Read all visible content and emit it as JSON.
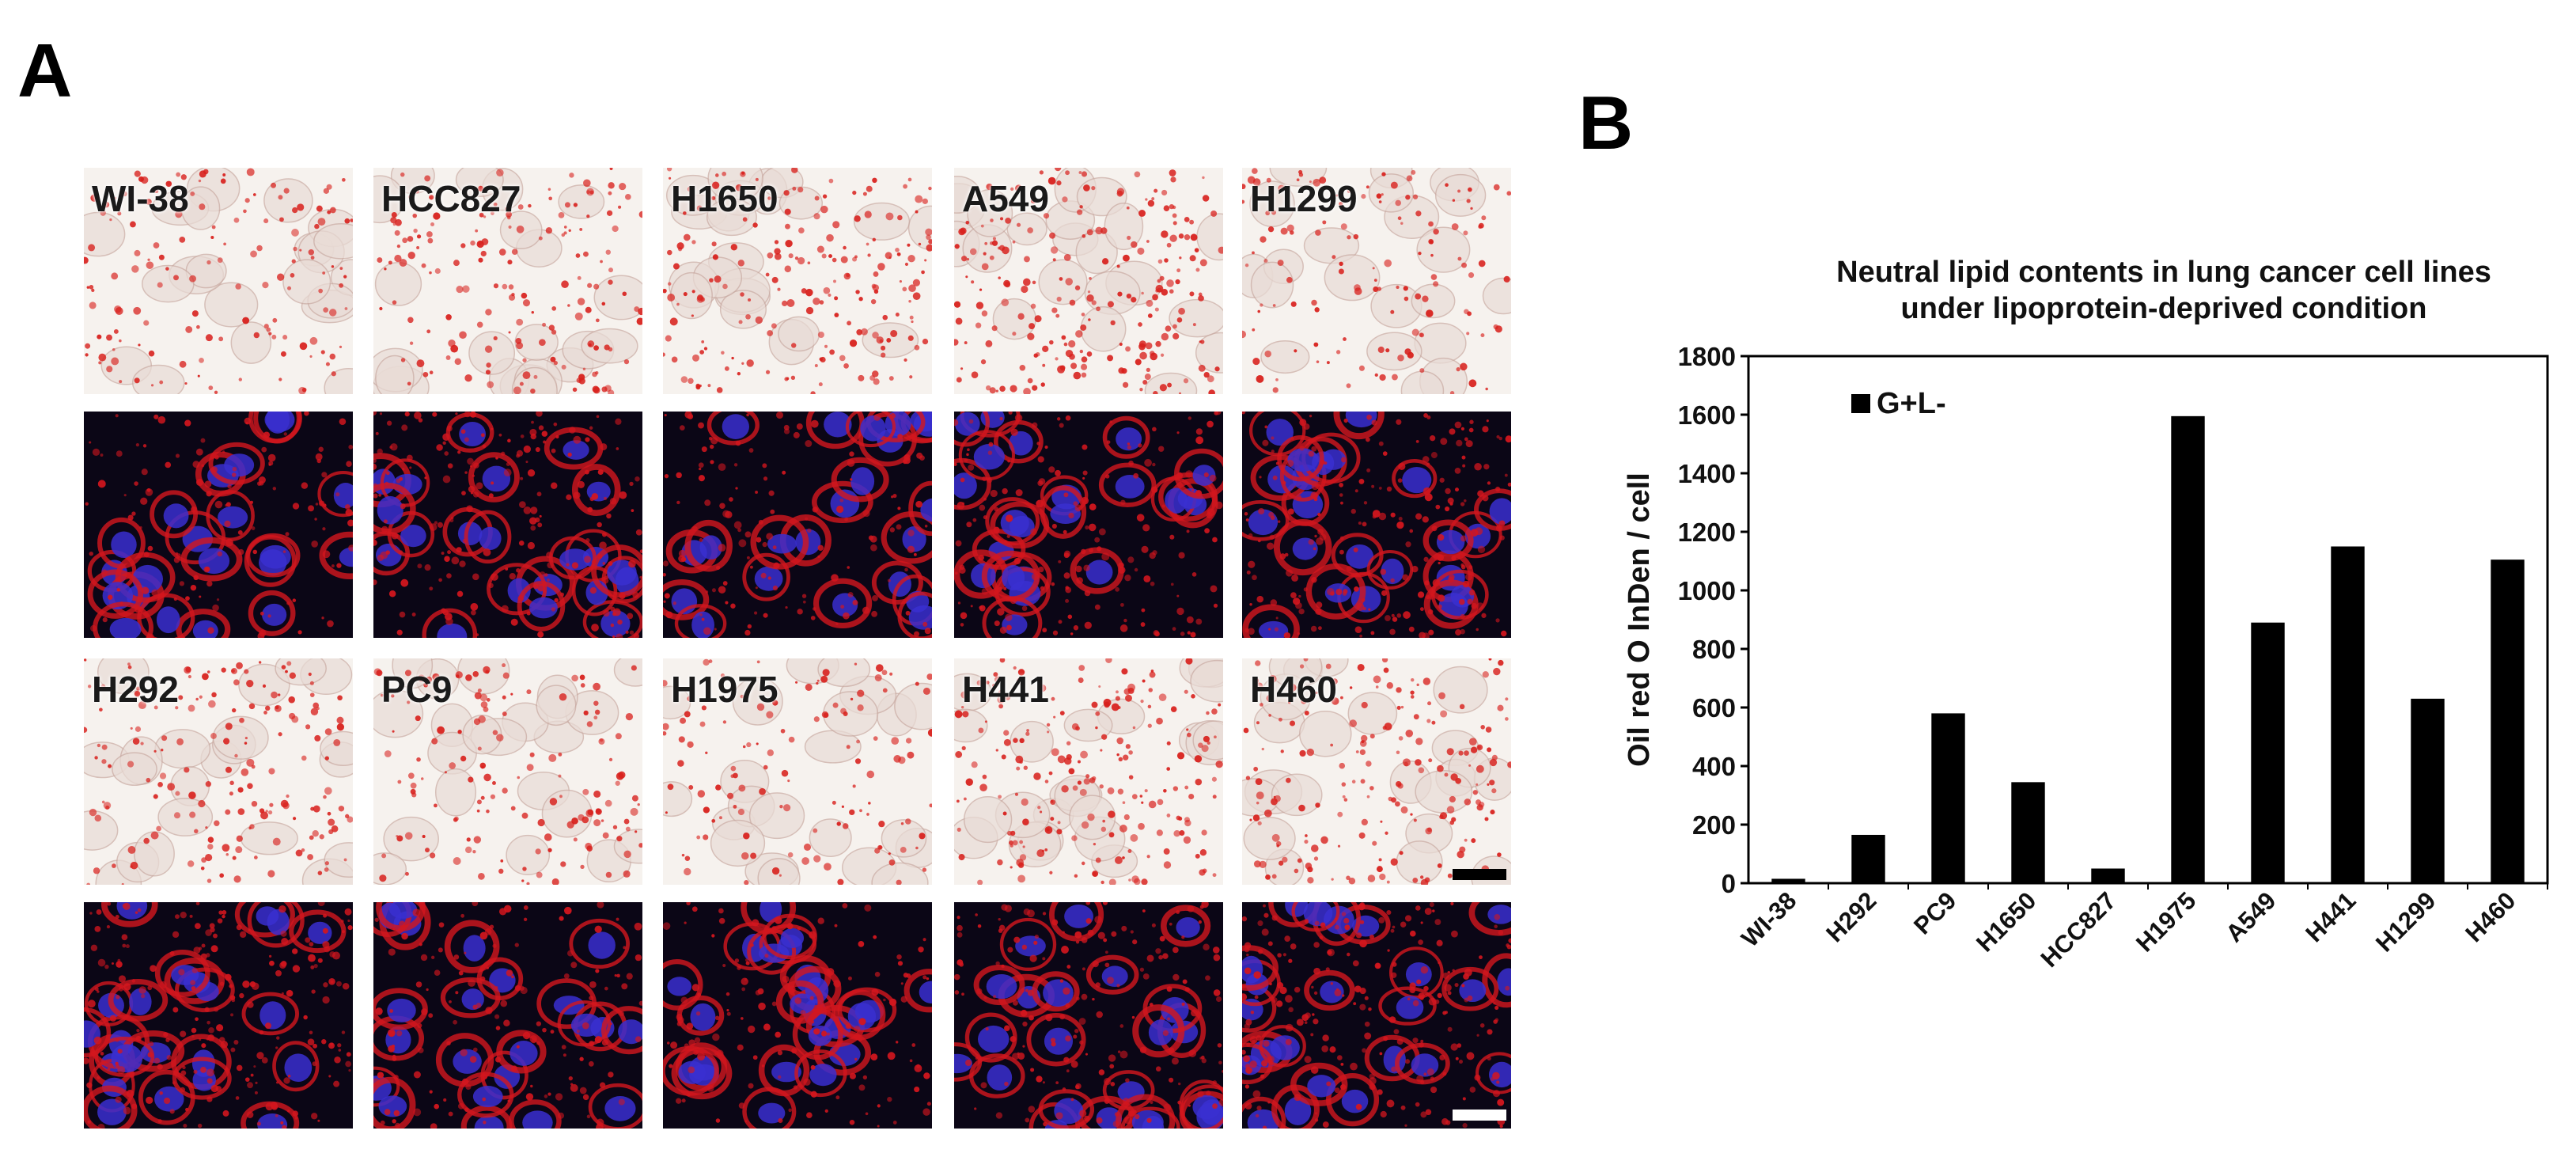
{
  "figure": {
    "panel_a_letter": "A",
    "panel_b_letter": "B"
  },
  "micrographs": {
    "rows": [
      {
        "stain": "oil-red-o-brightfield",
        "cells": [
          "WI-38",
          "HCC827",
          "H1650",
          "A549",
          "H1299"
        ]
      },
      {
        "stain": "fluorescence",
        "cells": [
          "WI-38",
          "HCC827",
          "H1650",
          "A549",
          "H1299"
        ]
      },
      {
        "stain": "oil-red-o-brightfield",
        "cells": [
          "H292",
          "PC9",
          "H1975",
          "H441",
          "H460"
        ]
      },
      {
        "stain": "fluorescence",
        "cells": [
          "H292",
          "PC9",
          "H1975",
          "H441",
          "H460"
        ]
      }
    ],
    "colors": {
      "brightfield_background": "#f6f2ee",
      "lipid_red": "#d8201c",
      "nucleus_blue": "#3a2fd0",
      "fluor_background": "#0b0616",
      "membrane_red": "#d3161e"
    }
  },
  "chart_data": {
    "type": "bar",
    "title": "Neutral lipid contents in lung cancer cell lines under lipoprotein-deprived condition",
    "title_lines": [
      "Neutral lipid contents in lung cancer cell lines",
      "under lipoprotein-deprived condition"
    ],
    "ylabel": "Oil red  O InDen / cell",
    "xlabel": "",
    "ylim": [
      0,
      1800
    ],
    "yticks": [
      0,
      200,
      400,
      600,
      800,
      1000,
      1200,
      1400,
      1600,
      1800
    ],
    "categories": [
      "WI-38",
      "H292",
      "PC9",
      "H1650",
      "HCC827",
      "H1975",
      "A549",
      "H441",
      "H1299",
      "H460"
    ],
    "series": [
      {
        "name": "G+L-",
        "values": [
          15,
          165,
          580,
          345,
          50,
          1595,
          890,
          1150,
          630,
          1105
        ],
        "color": "#000000"
      }
    ],
    "legend_position": "top-left",
    "grid": false
  }
}
